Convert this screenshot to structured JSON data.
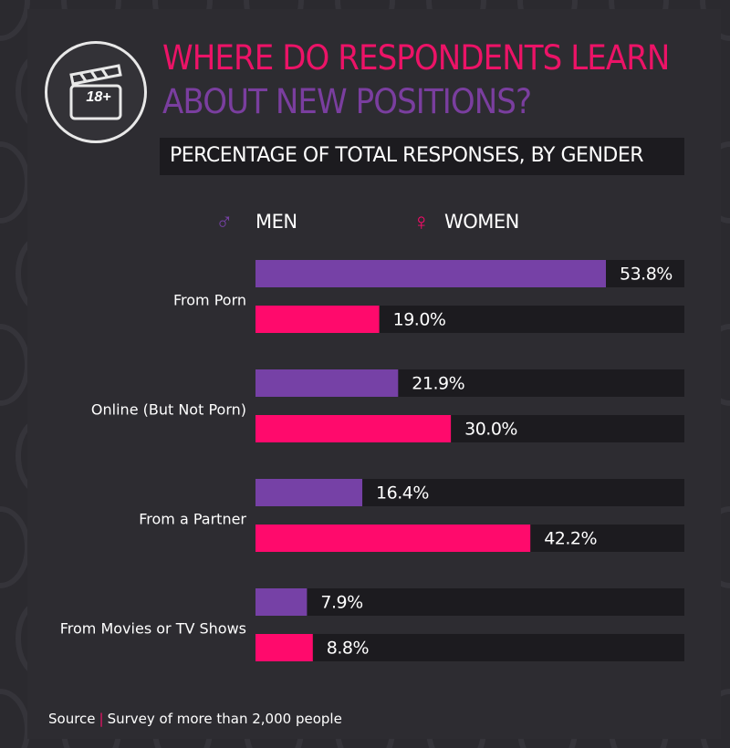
{
  "title_line1": "WHERE DO RESPONDENTS LEARN",
  "title_line2": "ABOUT NEW POSITIONS?",
  "logo_text": "18+",
  "colors": {
    "men": "#7641a6",
    "women": "#ff0a6c",
    "track": "#1c1b1f",
    "text": "#ffffff"
  },
  "legend": {
    "men_label": "MEN",
    "women_label": "WOMEN",
    "men_icon": "male-symbol",
    "women_icon": "female-symbol"
  },
  "source": {
    "label": "Source",
    "text": "Survey of more than 2,000 people"
  },
  "chart_data": {
    "type": "bar",
    "orientation": "horizontal",
    "title": "PERCENTAGE OF TOTAL RESPONSES, BY GENDER",
    "categories": [
      "From Porn",
      "Online (But Not Porn)",
      "From a Partner",
      "From Movies or TV Shows"
    ],
    "series": [
      {
        "name": "MEN",
        "values": [
          53.8,
          21.9,
          16.4,
          7.9
        ],
        "labels": [
          "53.8%",
          "21.9%",
          "16.4%",
          "7.9%"
        ]
      },
      {
        "name": "WOMEN",
        "values": [
          19.0,
          30.0,
          42.2,
          8.8
        ],
        "labels": [
          "19.0%",
          "30.0%",
          "42.2%",
          "8.8%"
        ]
      }
    ],
    "xlim": [
      0,
      100
    ],
    "grid": false,
    "legend": "top"
  }
}
